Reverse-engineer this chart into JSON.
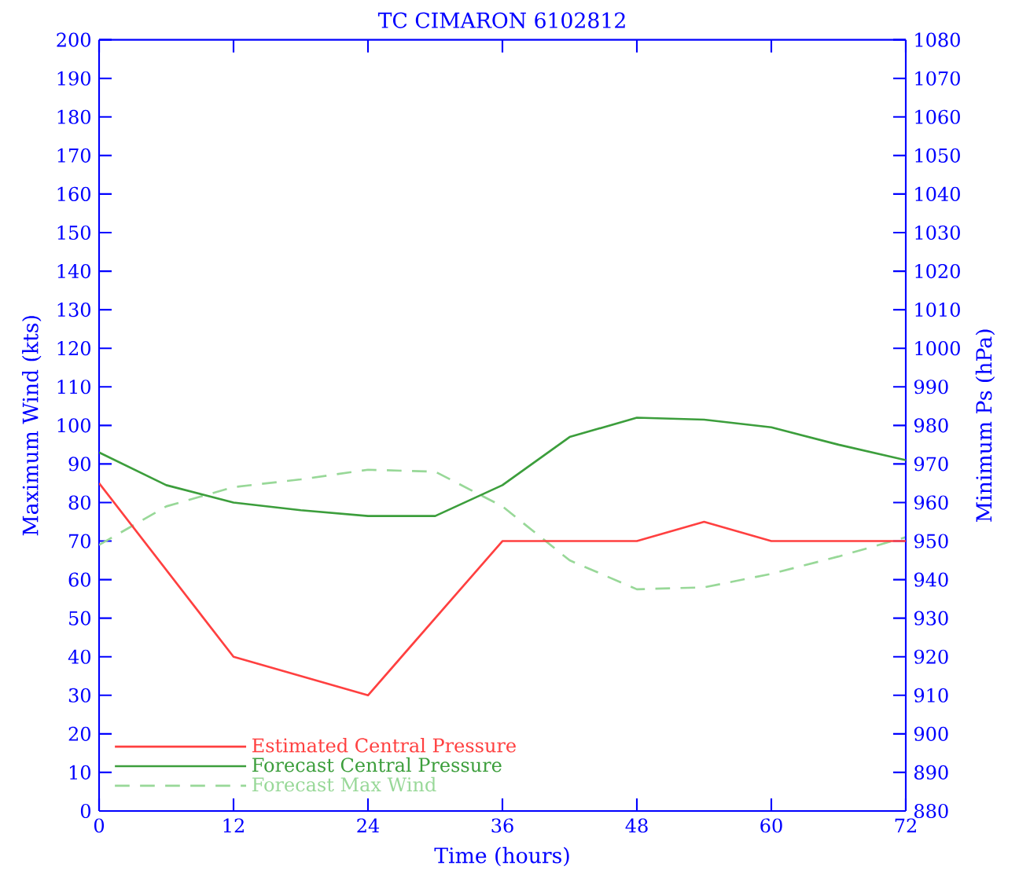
{
  "chart_data": {
    "type": "line",
    "title": "TC CIMARON 6102812",
    "xlabel": "Time (hours)",
    "ylabel": "Maximum Wind (kts)",
    "y2label": "Minimum Ps (hPa)",
    "x": [
      0,
      6,
      12,
      18,
      24,
      30,
      36,
      42,
      48,
      54,
      60,
      66,
      72
    ],
    "series": [
      {
        "name": "Estimated Central Pressure",
        "color": "#ff4040",
        "axis": "y2",
        "line_style": "solid",
        "x": [
          0,
          12,
          24,
          36,
          48,
          54,
          60,
          72
        ],
        "values": [
          965,
          920,
          910,
          950,
          950,
          955,
          950,
          950
        ]
      },
      {
        "name": "Forecast Central Pressure",
        "color": "#3c9e3c",
        "axis": "y2",
        "line_style": "solid",
        "values": [
          973,
          964.5,
          960,
          958,
          956.5,
          956.5,
          964.5,
          977,
          982,
          981.5,
          979.5,
          975,
          971
        ]
      },
      {
        "name": "Forecast Max Wind",
        "color": "#98d898",
        "axis": "y",
        "line_style": "dashed",
        "values": [
          69,
          79,
          84,
          86,
          88.5,
          88,
          79,
          65,
          57.5,
          58,
          61.5,
          66,
          71
        ]
      }
    ],
    "xlim": [
      0,
      72
    ],
    "xticks": [
      0,
      12,
      24,
      36,
      48,
      60,
      72
    ],
    "ylim": [
      0,
      200
    ],
    "yticks": [
      0,
      10,
      20,
      30,
      40,
      50,
      60,
      70,
      80,
      90,
      100,
      110,
      120,
      130,
      140,
      150,
      160,
      170,
      180,
      190,
      200
    ],
    "y2lim": [
      880,
      1080
    ],
    "y2ticks": [
      880,
      890,
      900,
      910,
      920,
      930,
      940,
      950,
      960,
      970,
      980,
      990,
      1000,
      1010,
      1020,
      1030,
      1040,
      1050,
      1060,
      1070,
      1080
    ],
    "grid": false,
    "legend": "bottom left",
    "marker": "none"
  }
}
